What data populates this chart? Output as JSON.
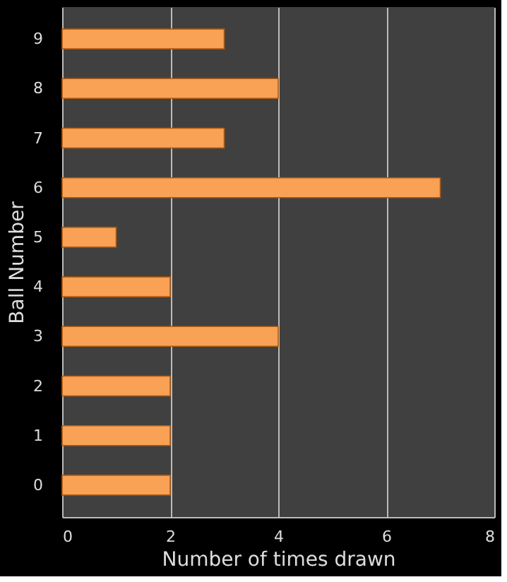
{
  "chart_data": {
    "type": "bar",
    "orientation": "horizontal",
    "xlabel": "Number  of times drawn",
    "ylabel": "Ball Number",
    "categories": [
      "9",
      "8",
      "7",
      "6",
      "5",
      "4",
      "3",
      "2",
      "1",
      "0"
    ],
    "values": [
      3,
      4,
      3,
      7,
      1,
      2,
      4,
      2,
      2,
      2
    ],
    "color": "#f9a155",
    "xlim": [
      0,
      8
    ],
    "xticks": [
      0,
      2,
      4,
      6,
      8
    ],
    "grid": "x"
  }
}
